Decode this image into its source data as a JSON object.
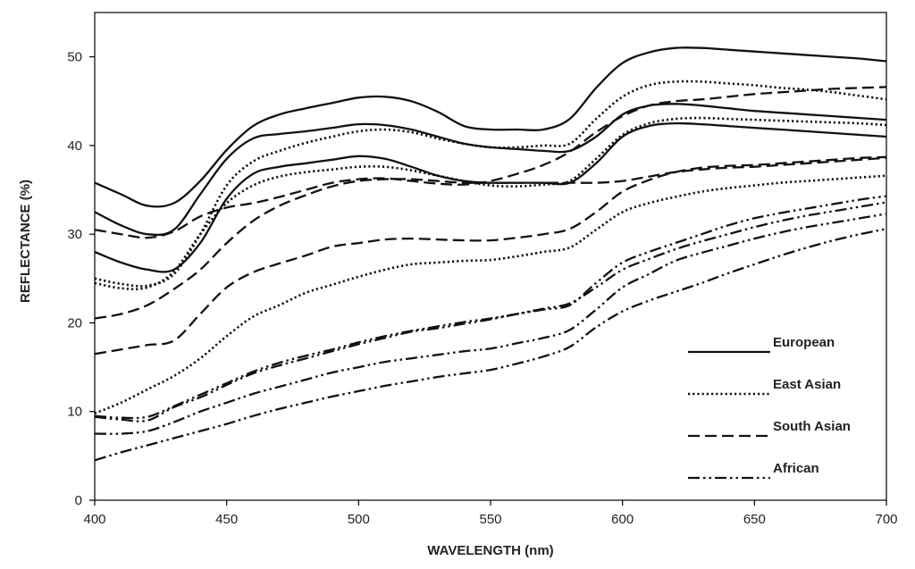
{
  "chart_data": {
    "type": "line",
    "xlabel": "WAVELENGTH (nm)",
    "ylabel": "REFLECTANCE (%)",
    "xlim": [
      400,
      700
    ],
    "ylim": [
      0,
      55
    ],
    "x_ticks": [
      400,
      450,
      500,
      550,
      600,
      650,
      700
    ],
    "x_tick_labels": [
      "400",
      "450",
      "500",
      "550",
      "600",
      "650",
      "700"
    ],
    "y_ticks": [
      0,
      10,
      20,
      30,
      40,
      50
    ],
    "y_tick_labels": [
      "0",
      "10",
      "20",
      "30",
      "40",
      "50"
    ],
    "grid": false,
    "legend_position": "bottom-right",
    "legend": [
      {
        "label": "European",
        "style": "solid"
      },
      {
        "label": "East Asian",
        "style": "dotted"
      },
      {
        "label": "South Asian",
        "style": "dashed"
      },
      {
        "label": "African",
        "style": "dashdot"
      }
    ],
    "x": [
      400,
      410,
      420,
      430,
      440,
      450,
      460,
      470,
      480,
      490,
      500,
      510,
      520,
      530,
      540,
      550,
      560,
      570,
      580,
      590,
      600,
      610,
      620,
      630,
      640,
      650,
      660,
      670,
      680,
      690,
      700
    ],
    "series": [
      {
        "group": "European",
        "values": [
          35.8,
          34.5,
          33.2,
          33.5,
          36.0,
          39.5,
          42.2,
          43.5,
          44.2,
          44.8,
          45.4,
          45.5,
          45.0,
          43.8,
          42.2,
          41.8,
          41.8,
          41.8,
          43.0,
          46.5,
          49.3,
          50.5,
          51.0,
          51.0,
          50.8,
          50.6,
          50.4,
          50.2,
          50.0,
          49.8,
          49.5
        ]
      },
      {
        "group": "European",
        "values": [
          32.5,
          31.0,
          30.0,
          30.5,
          34.5,
          38.5,
          40.8,
          41.3,
          41.6,
          42.0,
          42.4,
          42.3,
          41.8,
          41.0,
          40.2,
          39.8,
          39.6,
          39.4,
          39.4,
          41.0,
          43.5,
          44.5,
          44.7,
          44.5,
          44.2,
          43.9,
          43.7,
          43.5,
          43.3,
          43.1,
          42.9
        ]
      },
      {
        "group": "European",
        "values": [
          28.0,
          26.8,
          26.0,
          26.0,
          29.0,
          34.0,
          36.8,
          37.6,
          38.0,
          38.4,
          38.8,
          38.5,
          37.6,
          36.6,
          36.0,
          35.8,
          35.8,
          35.8,
          35.8,
          38.0,
          41.0,
          42.2,
          42.5,
          42.4,
          42.2,
          42.0,
          41.8,
          41.6,
          41.4,
          41.2,
          41.0
        ]
      },
      {
        "group": "East Asian",
        "values": [
          25.0,
          24.4,
          24.2,
          25.5,
          30.0,
          35.5,
          38.2,
          39.4,
          40.3,
          41.0,
          41.6,
          41.8,
          41.5,
          40.8,
          40.2,
          39.8,
          39.8,
          40.0,
          40.2,
          43.0,
          45.5,
          46.8,
          47.2,
          47.2,
          47.0,
          46.8,
          46.5,
          46.3,
          46.0,
          45.6,
          45.2
        ]
      },
      {
        "group": "East Asian",
        "values": [
          24.5,
          23.9,
          24.0,
          25.8,
          30.0,
          33.5,
          35.5,
          36.5,
          37.0,
          37.3,
          37.6,
          37.6,
          37.2,
          36.6,
          36.0,
          35.5,
          35.4,
          35.6,
          36.0,
          38.5,
          41.2,
          42.5,
          43.0,
          43.1,
          43.0,
          42.9,
          42.8,
          42.7,
          42.6,
          42.5,
          42.3
        ]
      },
      {
        "group": "East Asian",
        "values": [
          9.8,
          11.0,
          12.5,
          14.0,
          16.0,
          18.5,
          20.7,
          22.0,
          23.4,
          24.3,
          25.2,
          26.0,
          26.6,
          26.8,
          27.0,
          27.1,
          27.5,
          28.0,
          28.5,
          30.5,
          32.5,
          33.5,
          34.2,
          34.8,
          35.2,
          35.5,
          35.8,
          36.0,
          36.2,
          36.4,
          36.6
        ]
      },
      {
        "group": "South Asian",
        "values": [
          30.5,
          30.0,
          29.6,
          30.3,
          32.0,
          33.0,
          33.5,
          34.2,
          35.0,
          35.8,
          36.2,
          36.3,
          36.0,
          35.7,
          35.6,
          36.0,
          36.8,
          37.8,
          39.3,
          41.5,
          43.3,
          44.5,
          45.0,
          45.2,
          45.5,
          45.8,
          46.0,
          46.2,
          46.4,
          46.5,
          46.6
        ]
      },
      {
        "group": "South Asian",
        "values": [
          20.5,
          21.0,
          22.0,
          23.8,
          26.0,
          29.0,
          31.5,
          33.2,
          34.4,
          35.4,
          36.0,
          36.2,
          36.2,
          36.0,
          35.8,
          35.8,
          35.8,
          35.8,
          35.8,
          35.8,
          36.0,
          36.5,
          37.0,
          37.3,
          37.5,
          37.6,
          37.8,
          38.0,
          38.2,
          38.4,
          38.6
        ]
      },
      {
        "group": "South Asian",
        "values": [
          16.5,
          17.0,
          17.5,
          18.0,
          21.0,
          24.0,
          25.7,
          26.7,
          27.6,
          28.6,
          29.0,
          29.4,
          29.5,
          29.4,
          29.3,
          29.3,
          29.6,
          30.0,
          30.6,
          32.5,
          34.8,
          36.1,
          37.0,
          37.5,
          37.7,
          37.8,
          38.0,
          38.2,
          38.4,
          38.6,
          38.7
        ]
      },
      {
        "group": "African",
        "values": [
          9.5,
          9.3,
          9.4,
          10.6,
          11.9,
          13.2,
          14.5,
          15.5,
          16.3,
          17.0,
          17.8,
          18.5,
          19.1,
          19.6,
          20.1,
          20.5,
          21.0,
          21.5,
          22.0,
          24.5,
          26.8,
          28.0,
          29.0,
          30.0,
          31.0,
          31.8,
          32.4,
          32.9,
          33.4,
          33.9,
          34.3
        ]
      },
      {
        "group": "African",
        "values": [
          9.4,
          9.1,
          9.0,
          10.5,
          11.6,
          13.0,
          14.3,
          15.2,
          16.0,
          16.8,
          17.6,
          18.3,
          19.0,
          19.4,
          19.9,
          20.4,
          21.0,
          21.6,
          22.2,
          24.0,
          26.0,
          27.2,
          28.3,
          29.2,
          30.0,
          30.8,
          31.5,
          32.1,
          32.6,
          33.1,
          33.6
        ]
      },
      {
        "group": "African",
        "values": [
          7.5,
          7.5,
          7.8,
          8.8,
          10.0,
          11.0,
          12.0,
          12.8,
          13.6,
          14.4,
          15.0,
          15.6,
          16.0,
          16.4,
          16.8,
          17.1,
          17.7,
          18.3,
          19.2,
          21.5,
          24.0,
          25.5,
          27.0,
          27.9,
          28.7,
          29.5,
          30.2,
          30.8,
          31.3,
          31.8,
          32.3
        ]
      },
      {
        "group": "African",
        "values": [
          4.5,
          5.4,
          6.2,
          7.0,
          7.8,
          8.6,
          9.5,
          10.3,
          11.0,
          11.7,
          12.3,
          12.9,
          13.4,
          13.9,
          14.3,
          14.7,
          15.4,
          16.2,
          17.3,
          19.5,
          21.3,
          22.5,
          23.5,
          24.5,
          25.6,
          26.6,
          27.6,
          28.5,
          29.3,
          30.0,
          30.6
        ]
      }
    ]
  }
}
